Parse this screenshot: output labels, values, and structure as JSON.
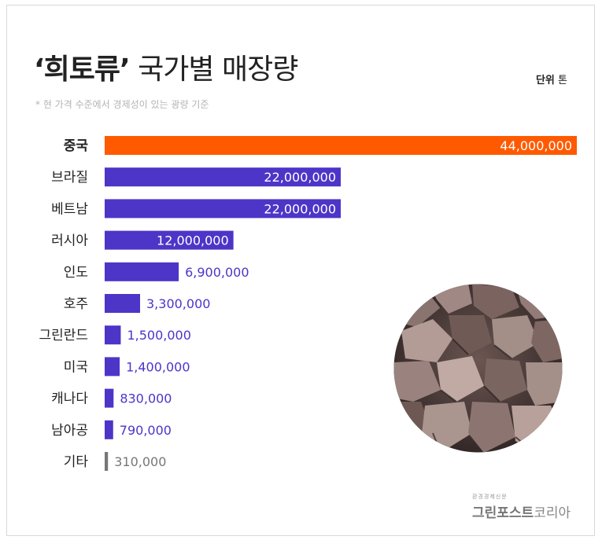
{
  "title": {
    "main_bold": "‘희토류’",
    "main_light": "국가별 매장량",
    "note": "* 현 가격 수준에서 경제성이 있는 광량 기준",
    "unit_label": "단위",
    "unit_value": "톤"
  },
  "credit": {
    "small": "환경경제신문",
    "name_bold": "그린포스트",
    "name_light": "코리아"
  },
  "image": {
    "icon": "rock-pile-photo"
  },
  "colors": {
    "highlight": "#ff5a00",
    "bar": "#4d35c8",
    "minor_bar": "#777777",
    "value_outside": "#4d35c8",
    "value_minor": "#777777"
  },
  "chart_data": {
    "type": "bar",
    "orientation": "horizontal",
    "categories": [
      "중국",
      "브라질",
      "베트남",
      "러시아",
      "인도",
      "호주",
      "그린란드",
      "미국",
      "캐나다",
      "남아공",
      "기타"
    ],
    "labels": [
      "44,000,000",
      "22,000,000",
      "22,000,000",
      "12,000,000",
      "6,900,000",
      "3,300,000",
      "1,500,000",
      "1,400,000",
      "830,000",
      "790,000",
      "310,000"
    ],
    "values": [
      44000000,
      22000000,
      22000000,
      12000000,
      6900000,
      3300000,
      1500000,
      1400000,
      830000,
      790000,
      310000
    ],
    "highlight_index": 0,
    "minor_index": 10,
    "xlim": [
      0,
      44000000
    ],
    "grid": false,
    "legend": "none"
  }
}
